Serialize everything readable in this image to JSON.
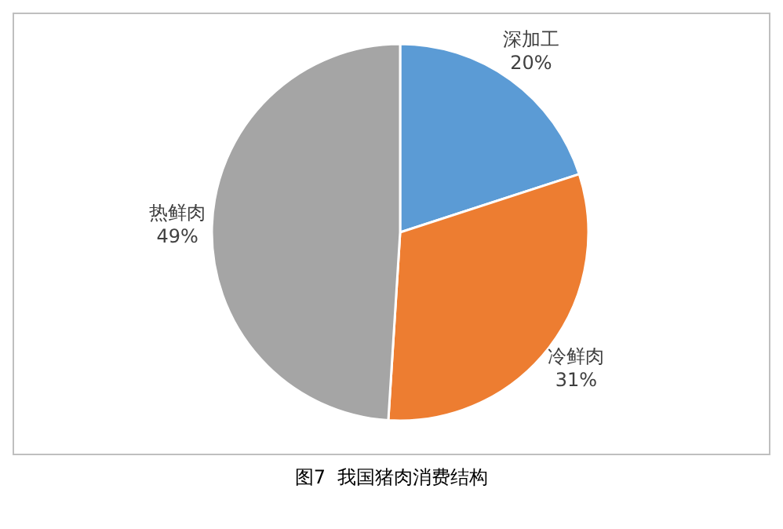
{
  "chart_data": {
    "type": "pie",
    "title": "图7  我国猪肉消费结构",
    "categories": [
      "深加工",
      "冷鲜肉",
      "热鲜肉"
    ],
    "values": [
      20,
      31,
      49
    ],
    "colors": [
      "#5b9bd5",
      "#ed7d31",
      "#a5a5a5"
    ],
    "value_labels": [
      "20%",
      "31%",
      "49%"
    ]
  }
}
